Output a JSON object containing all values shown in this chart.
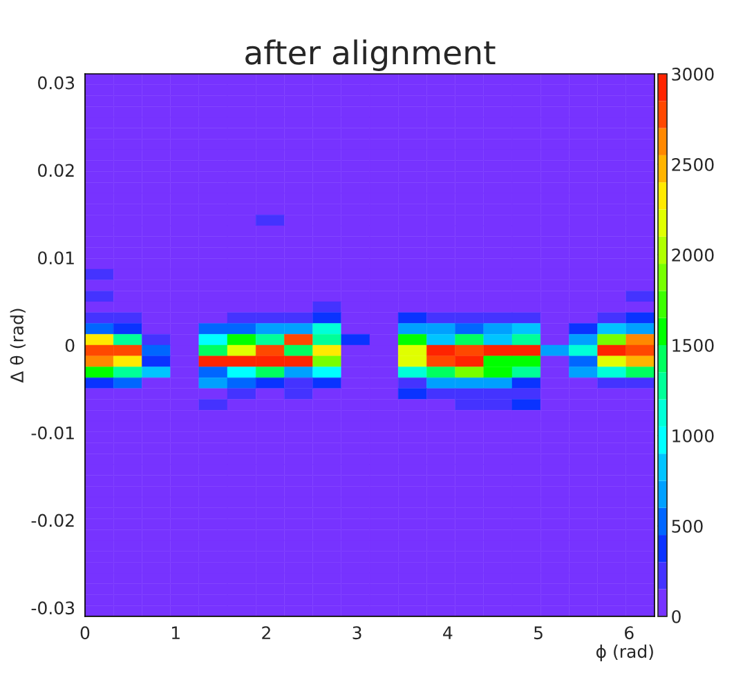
{
  "chart_data": {
    "type": "heatmap",
    "title": "after alignment",
    "xlabel": "ϕ (rad)",
    "ylabel": "Δ θ (rad)",
    "xlim": [
      0,
      6.28
    ],
    "xticks": [
      0,
      1,
      2,
      3,
      4,
      5,
      6
    ],
    "ylim": [
      -0.031,
      0.031
    ],
    "yticks": [
      -0.03,
      -0.02,
      -0.01,
      0,
      0.01,
      0.02,
      0.03
    ],
    "clim": [
      0,
      3000
    ],
    "cticks": [
      0,
      500,
      1000,
      1500,
      2000,
      2500,
      3000
    ],
    "colors": [
      "#7733ff",
      "#4433ff",
      "#0a33ff",
      "#0066ff",
      "#00a0ff",
      "#00c4ff",
      "#00ffff",
      "#00ffd8",
      "#00ff98",
      "#00ff60",
      "#00ff00",
      "#3cff00",
      "#77ff00",
      "#b0ff00",
      "#e0ff00",
      "#ffea00",
      "#ffb400",
      "#ff8800",
      "#ff4800",
      "#ff2400"
    ],
    "cells": [
      [
        0,
        0,
        0,
        0,
        0,
        0,
        0,
        0,
        0,
        0,
        0,
        0,
        0,
        0,
        0,
        0,
        0,
        0,
        0,
        0
      ],
      [
        0,
        0,
        0,
        0,
        0,
        0,
        0,
        0,
        0,
        0,
        0,
        0,
        0,
        0,
        0,
        0,
        0,
        0,
        0,
        0
      ],
      [
        0,
        0,
        0,
        0,
        0,
        0,
        0,
        0,
        0,
        0,
        0,
        0,
        0,
        0,
        0,
        0,
        0,
        0,
        0,
        0
      ],
      [
        0,
        0,
        0,
        0,
        0,
        0,
        0,
        0,
        0,
        0,
        0,
        0,
        0,
        0,
        0,
        0,
        0,
        0,
        0,
        0
      ],
      [
        0,
        0,
        0,
        0,
        0,
        0,
        0,
        0,
        0,
        0,
        0,
        0,
        0,
        0,
        0,
        0,
        0,
        0,
        0,
        0
      ],
      [
        0,
        0,
        0,
        0,
        0,
        0,
        0,
        0,
        0,
        0,
        0,
        0,
        0,
        0,
        0,
        0,
        0,
        0,
        0,
        0
      ],
      [
        0,
        0,
        0,
        0,
        0,
        0,
        0,
        0,
        0,
        0,
        0,
        0,
        0,
        0,
        0,
        0,
        0,
        0,
        0,
        0
      ],
      [
        0,
        0,
        0,
        0,
        0,
        0,
        0,
        0,
        0,
        0,
        0,
        0,
        0,
        0,
        0,
        0,
        0,
        0,
        0,
        0
      ],
      [
        0,
        0,
        0,
        0,
        0,
        0,
        0,
        0,
        0,
        0,
        0,
        0,
        0,
        0,
        0,
        0,
        0,
        0,
        0,
        0
      ],
      [
        0,
        0,
        0,
        0,
        0,
        0,
        0,
        0,
        0,
        0,
        0,
        0,
        0,
        0,
        0,
        0,
        0,
        0,
        0,
        0
      ],
      [
        0,
        0,
        0,
        0,
        0,
        0,
        0,
        0,
        0,
        0,
        0,
        0,
        0,
        0,
        0,
        0,
        0,
        0,
        0,
        0
      ],
      [
        0,
        0,
        0,
        0,
        0,
        0,
        0,
        0,
        0,
        0,
        0,
        0,
        0,
        0,
        0,
        0,
        0,
        0,
        0,
        0
      ],
      [
        0,
        0,
        0,
        0,
        0,
        0,
        0,
        0,
        0,
        0,
        0,
        0,
        0,
        0,
        0,
        0,
        0,
        0,
        0,
        0
      ],
      [
        0,
        0,
        0,
        0,
        0,
        0,
        225,
        0,
        0,
        0,
        0,
        0,
        0,
        0,
        0,
        0,
        0,
        0,
        0,
        0
      ],
      [
        0,
        0,
        0,
        0,
        0,
        0,
        0,
        0,
        0,
        0,
        0,
        0,
        0,
        0,
        0,
        0,
        0,
        0,
        0,
        0
      ],
      [
        0,
        0,
        0,
        0,
        0,
        0,
        0,
        0,
        0,
        0,
        0,
        0,
        0,
        0,
        0,
        0,
        0,
        0,
        0,
        0
      ],
      [
        0,
        0,
        0,
        0,
        0,
        0,
        0,
        0,
        0,
        0,
        0,
        0,
        0,
        0,
        0,
        0,
        0,
        0,
        0,
        0
      ],
      [
        0,
        0,
        0,
        0,
        0,
        0,
        0,
        0,
        0,
        0,
        0,
        0,
        0,
        0,
        0,
        0,
        0,
        0,
        0,
        0
      ],
      [
        225,
        0,
        0,
        0,
        0,
        0,
        0,
        0,
        0,
        0,
        0,
        0,
        0,
        0,
        0,
        0,
        0,
        0,
        0,
        0
      ],
      [
        0,
        0,
        0,
        0,
        0,
        0,
        0,
        0,
        0,
        0,
        0,
        0,
        0,
        0,
        0,
        0,
        0,
        0,
        0,
        0
      ],
      [
        225,
        0,
        0,
        0,
        0,
        0,
        0,
        0,
        0,
        0,
        0,
        0,
        0,
        0,
        0,
        0,
        0,
        0,
        0,
        225
      ],
      [
        0,
        0,
        0,
        0,
        0,
        0,
        0,
        0,
        225,
        0,
        0,
        0,
        0,
        0,
        0,
        0,
        0,
        0,
        0,
        0
      ],
      [
        225,
        225,
        0,
        0,
        0,
        225,
        225,
        225,
        375,
        0,
        0,
        375,
        225,
        225,
        225,
        225,
        0,
        0,
        225,
        375
      ],
      [
        525,
        375,
        0,
        0,
        525,
        525,
        675,
        675,
        1125,
        0,
        0,
        675,
        675,
        525,
        675,
        825,
        0,
        375,
        825,
        675
      ],
      [
        2325,
        1275,
        225,
        0,
        975,
        1575,
        1275,
        2775,
        1275,
        375,
        0,
        1575,
        825,
        1425,
        825,
        1275,
        0,
        675,
        1875,
        2625
      ],
      [
        2775,
        2775,
        525,
        0,
        1425,
        2175,
        2775,
        1425,
        2325,
        0,
        0,
        2175,
        2925,
        2775,
        2925,
        2925,
        675,
        1125,
        2925,
        2775
      ],
      [
        2625,
        2325,
        375,
        0,
        2925,
        2925,
        2925,
        2925,
        1875,
        0,
        0,
        2175,
        2775,
        2925,
        1575,
        1575,
        0,
        525,
        2175,
        2475
      ],
      [
        1575,
        1275,
        825,
        0,
        525,
        975,
        1425,
        675,
        975,
        0,
        0,
        1125,
        1425,
        1875,
        1575,
        1275,
        0,
        675,
        1125,
        1425
      ],
      [
        375,
        525,
        0,
        0,
        675,
        525,
        375,
        225,
        375,
        0,
        0,
        225,
        675,
        675,
        675,
        375,
        0,
        0,
        225,
        225
      ],
      [
        0,
        0,
        0,
        0,
        0,
        225,
        0,
        225,
        0,
        0,
        0,
        375,
        225,
        225,
        225,
        225,
        0,
        0,
        0,
        0
      ],
      [
        0,
        0,
        0,
        0,
        225,
        0,
        0,
        0,
        0,
        0,
        0,
        0,
        0,
        225,
        225,
        375,
        0,
        0,
        0,
        0
      ],
      [
        0,
        0,
        0,
        0,
        0,
        0,
        0,
        0,
        0,
        0,
        0,
        0,
        0,
        0,
        0,
        0,
        0,
        0,
        0,
        0
      ],
      [
        0,
        0,
        0,
        0,
        0,
        0,
        0,
        0,
        0,
        0,
        0,
        0,
        0,
        0,
        0,
        0,
        0,
        0,
        0,
        0
      ],
      [
        0,
        0,
        0,
        0,
        0,
        0,
        0,
        0,
        0,
        0,
        0,
        0,
        0,
        0,
        0,
        0,
        0,
        0,
        0,
        0
      ],
      [
        0,
        0,
        0,
        0,
        0,
        0,
        0,
        0,
        0,
        0,
        0,
        0,
        0,
        0,
        0,
        0,
        0,
        0,
        0,
        0
      ],
      [
        0,
        0,
        0,
        0,
        0,
        0,
        0,
        0,
        0,
        0,
        0,
        0,
        0,
        0,
        0,
        0,
        0,
        0,
        0,
        0
      ],
      [
        0,
        0,
        0,
        0,
        0,
        0,
        0,
        0,
        0,
        0,
        0,
        0,
        0,
        0,
        0,
        0,
        0,
        0,
        0,
        0
      ],
      [
        0,
        0,
        0,
        0,
        0,
        0,
        0,
        0,
        0,
        0,
        0,
        0,
        0,
        0,
        0,
        0,
        0,
        0,
        0,
        0
      ],
      [
        0,
        0,
        0,
        0,
        0,
        0,
        0,
        0,
        0,
        0,
        0,
        0,
        0,
        0,
        0,
        0,
        0,
        0,
        0,
        0
      ],
      [
        0,
        0,
        0,
        0,
        0,
        0,
        0,
        0,
        0,
        0,
        0,
        0,
        0,
        0,
        0,
        0,
        0,
        0,
        0,
        0
      ],
      [
        0,
        0,
        0,
        0,
        0,
        0,
        0,
        0,
        0,
        0,
        0,
        0,
        0,
        0,
        0,
        0,
        0,
        0,
        0,
        0
      ],
      [
        0,
        0,
        0,
        0,
        0,
        0,
        0,
        0,
        0,
        0,
        0,
        0,
        0,
        0,
        0,
        0,
        0,
        0,
        0,
        0
      ],
      [
        0,
        0,
        0,
        0,
        0,
        0,
        0,
        0,
        0,
        0,
        0,
        0,
        0,
        0,
        0,
        0,
        0,
        0,
        0,
        0
      ],
      [
        0,
        0,
        0,
        0,
        0,
        0,
        0,
        0,
        0,
        0,
        0,
        0,
        0,
        0,
        0,
        0,
        0,
        0,
        0,
        0
      ],
      [
        0,
        0,
        0,
        0,
        0,
        0,
        0,
        0,
        0,
        0,
        0,
        0,
        0,
        0,
        0,
        0,
        0,
        0,
        0,
        0
      ],
      [
        0,
        0,
        0,
        0,
        0,
        0,
        0,
        0,
        0,
        0,
        0,
        0,
        0,
        0,
        0,
        0,
        0,
        0,
        0,
        0
      ],
      [
        0,
        0,
        0,
        0,
        0,
        0,
        0,
        0,
        0,
        0,
        0,
        0,
        0,
        0,
        0,
        0,
        0,
        0,
        0,
        0
      ],
      [
        0,
        0,
        0,
        0,
        0,
        0,
        0,
        0,
        0,
        0,
        0,
        0,
        0,
        0,
        0,
        0,
        0,
        0,
        0,
        0
      ],
      [
        0,
        0,
        0,
        0,
        0,
        0,
        0,
        0,
        0,
        0,
        0,
        0,
        0,
        0,
        0,
        0,
        0,
        0,
        0,
        0
      ],
      [
        0,
        0,
        0,
        0,
        0,
        0,
        0,
        0,
        0,
        0,
        0,
        0,
        0,
        0,
        0,
        0,
        0,
        0,
        0,
        0
      ]
    ]
  }
}
